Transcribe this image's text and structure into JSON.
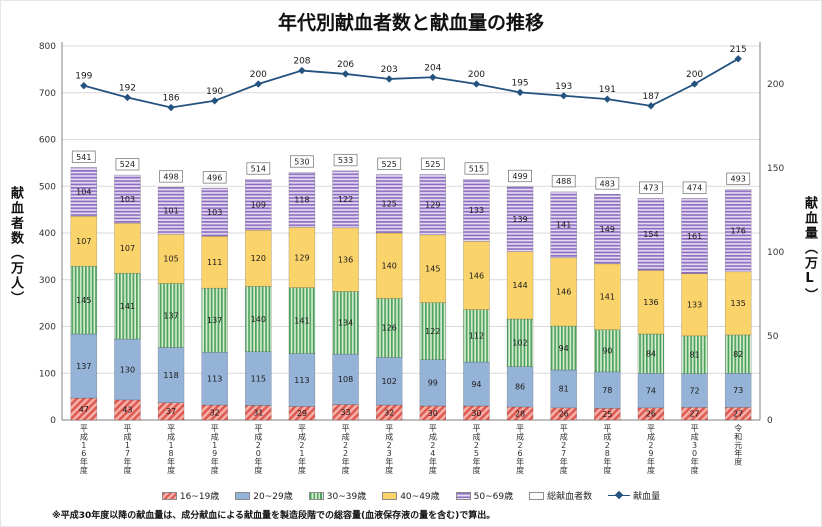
{
  "title": "年代別献血者数と献血量の推移",
  "footnote": "※平成30年度以降の献血量は、成分献血による献血量を製造段階での総容量(血液保存液の量を含む)で算出。",
  "left_axis": {
    "title": "献血者数（万人）",
    "ticks": [
      0,
      100,
      200,
      300,
      400,
      500,
      600,
      700,
      800
    ]
  },
  "right_axis": {
    "title": "献血量（万L）",
    "ticks": [
      0,
      50,
      100,
      150,
      200
    ]
  },
  "chart_data": {
    "type": "bar",
    "subtype": "stacked-bars-with-line",
    "title": "年代別献血者数と献血量の推移",
    "xlabel": "年度",
    "ylabel_left": "献血者数（万人）",
    "ylabel_right": "献血量（万L）",
    "ylim_left": [
      0,
      800
    ],
    "ylim_right_ticks": [
      0,
      200
    ],
    "grid": true,
    "legend_position": "bottom",
    "categories": [
      "平成16年度",
      "平成17年度",
      "平成18年度",
      "平成19年度",
      "平成20年度",
      "平成21年度",
      "平成22年度",
      "平成23年度",
      "平成24年度",
      "平成25年度",
      "平成26年度",
      "平成27年度",
      "平成28年度",
      "平成29年度",
      "平成30年度",
      "令和元年度"
    ],
    "series": [
      {
        "name": "16~19歳",
        "pattern": "diagonal",
        "color": "#de5a52",
        "color2": "#f5b0a9",
        "values": [
          47,
          43,
          37,
          32,
          31,
          29,
          33,
          32,
          30,
          30,
          28,
          26,
          25,
          26,
          27,
          27
        ]
      },
      {
        "name": "20~29歳",
        "pattern": "solid",
        "color": "#95b3d7",
        "values": [
          137,
          130,
          118,
          113,
          115,
          113,
          108,
          102,
          99,
          94,
          86,
          81,
          78,
          74,
          72,
          73
        ]
      },
      {
        "name": "30~39歳",
        "pattern": "vertical",
        "color": "#4ea35a",
        "color2": "#d6ecd4",
        "values": [
          145,
          141,
          137,
          137,
          140,
          141,
          134,
          126,
          122,
          112,
          102,
          94,
          90,
          84,
          81,
          82
        ]
      },
      {
        "name": "40~49歳",
        "pattern": "solid",
        "color": "#fbd36b",
        "values": [
          107,
          107,
          105,
          111,
          120,
          129,
          136,
          140,
          145,
          146,
          144,
          146,
          141,
          136,
          133,
          135
        ]
      },
      {
        "name": "50~69歳",
        "pattern": "horizontal",
        "color": "#8e6ec1",
        "color2": "#e6dcf2",
        "values": [
          104,
          103,
          101,
          103,
          109,
          118,
          122,
          125,
          129,
          133,
          139,
          141,
          149,
          154,
          161,
          176
        ]
      }
    ],
    "totals": {
      "name": "総献血者数",
      "values": [
        541,
        524,
        498,
        496,
        514,
        530,
        533,
        525,
        525,
        515,
        499,
        488,
        483,
        473,
        474,
        493
      ]
    },
    "line": {
      "name": "献血量",
      "color": "#24527e",
      "values": [
        199,
        192,
        186,
        190,
        200,
        208,
        206,
        203,
        204,
        200,
        195,
        193,
        191,
        187,
        200,
        215
      ]
    },
    "grid_color": "#d9d9d9",
    "axis_color": "#808080"
  }
}
